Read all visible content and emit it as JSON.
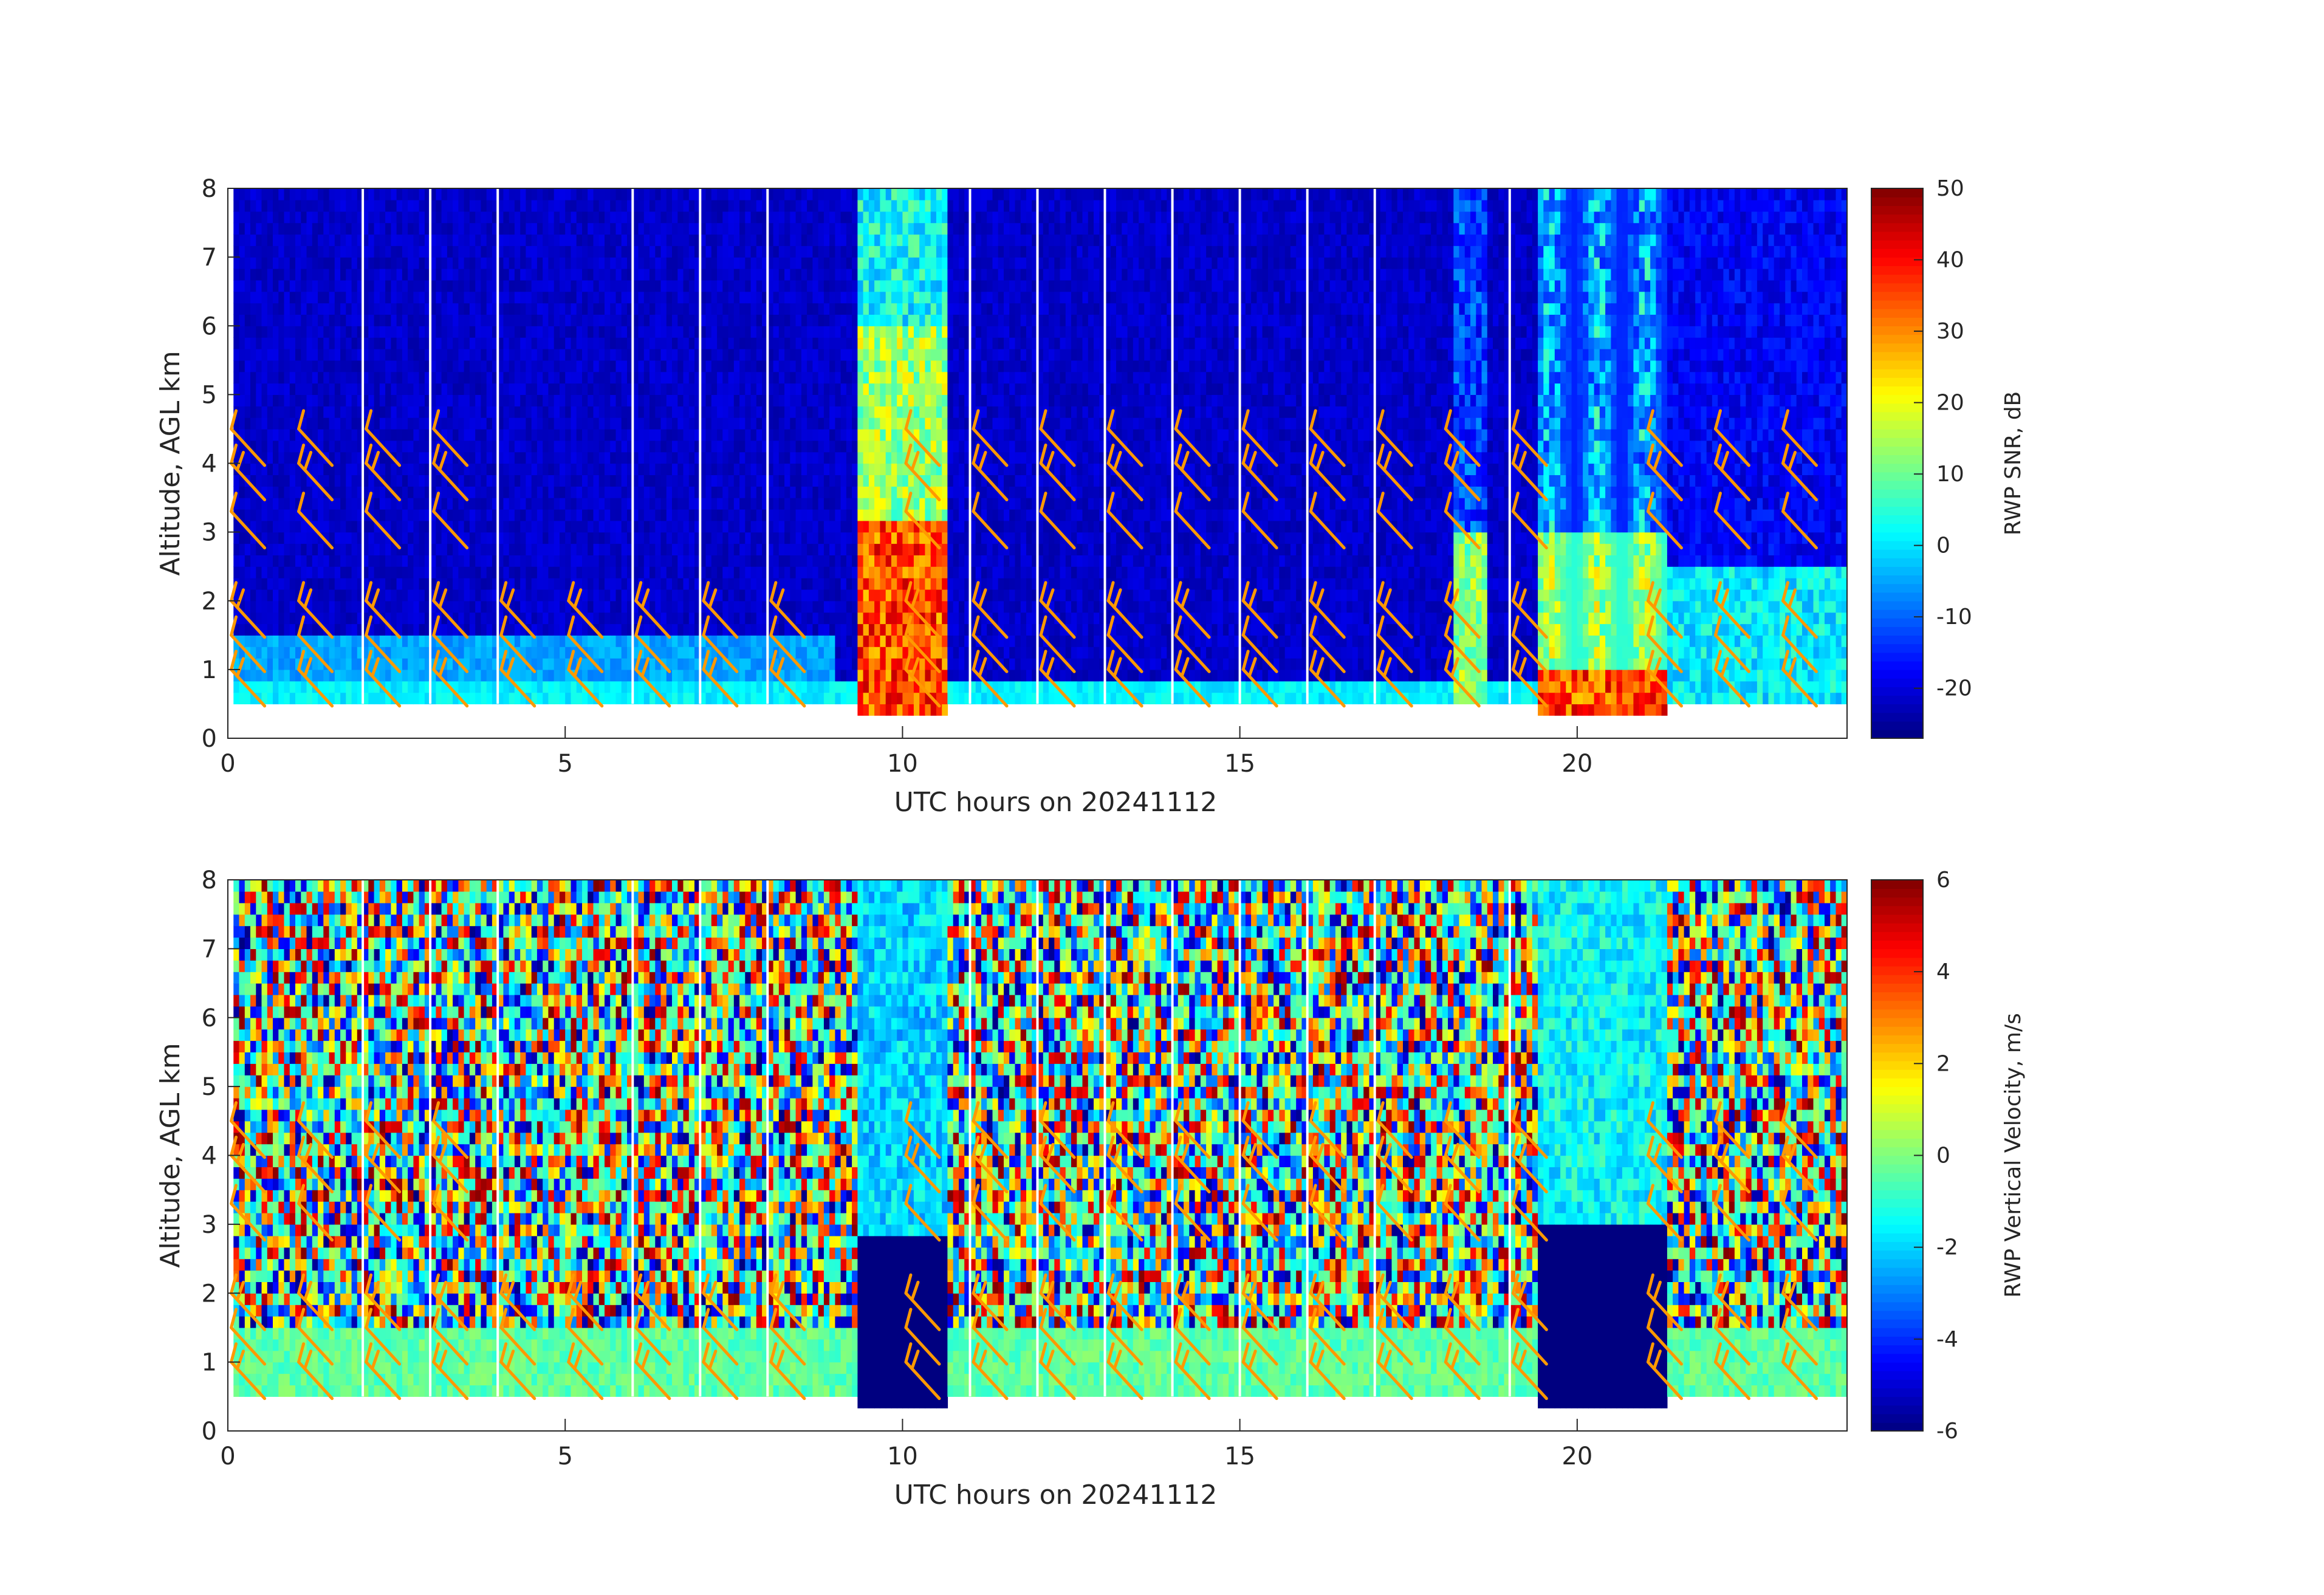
{
  "chart_data": [
    {
      "type": "heatmap",
      "panel": "top",
      "xlabel": "UTC hours on 20241112",
      "ylabel": "Altitude, AGL km",
      "xlim": [
        0,
        24
      ],
      "ylim": [
        0,
        8
      ],
      "xticks": [
        "0",
        "5",
        "10",
        "15",
        "20"
      ],
      "xtick_values": [
        0,
        5,
        10,
        15,
        20
      ],
      "yticks": [
        "0",
        "1",
        "2",
        "3",
        "4",
        "5",
        "6",
        "7",
        "8"
      ],
      "ytick_values": [
        0,
        1,
        2,
        3,
        4,
        5,
        6,
        7,
        8
      ],
      "colorbar": {
        "label": "RWP SNR, dB",
        "range": [
          -27,
          50
        ],
        "ticks": [
          "50",
          "40",
          "30",
          "20",
          "10",
          "0",
          "-10",
          "-20"
        ],
        "tick_values": [
          50,
          40,
          30,
          20,
          10,
          0,
          -10,
          -20
        ],
        "colormap": "jet"
      },
      "field": "snr",
      "gap_hours": [
        2,
        3,
        4,
        6,
        7,
        8,
        11,
        12,
        13,
        14,
        15,
        16,
        17,
        19
      ],
      "wind_barb_color": "#ff9900"
    },
    {
      "type": "heatmap",
      "panel": "bottom",
      "xlabel": "UTC hours on 20241112",
      "ylabel": "Altitude, AGL km",
      "xlim": [
        0,
        24
      ],
      "ylim": [
        0,
        8
      ],
      "xticks": [
        "0",
        "5",
        "10",
        "15",
        "20"
      ],
      "xtick_values": [
        0,
        5,
        10,
        15,
        20
      ],
      "yticks": [
        "0",
        "1",
        "2",
        "3",
        "4",
        "5",
        "6",
        "7",
        "8"
      ],
      "ytick_values": [
        0,
        1,
        2,
        3,
        4,
        5,
        6,
        7,
        8
      ],
      "colorbar": {
        "label": "RWP Vertical Velocity, m/s",
        "range": [
          -6,
          6
        ],
        "ticks": [
          "6",
          "4",
          "2",
          "0",
          "-2",
          "-4",
          "-6"
        ],
        "tick_values": [
          6,
          4,
          2,
          0,
          -2,
          -4,
          -6
        ],
        "colormap": "jet"
      },
      "field": "w",
      "gap_hours": [
        2,
        3,
        4,
        6,
        7,
        8,
        11,
        12,
        13,
        14,
        15,
        16,
        17,
        19
      ],
      "wind_barb_color": "#ff9900"
    }
  ]
}
